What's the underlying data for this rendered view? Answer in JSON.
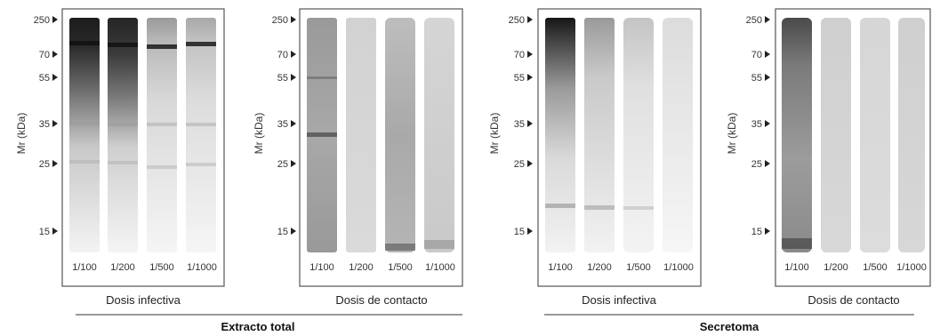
{
  "axis_title": "Mr (kDa)",
  "mw_ticks": [
    "250",
    "70",
    "55",
    "35",
    "25",
    "15"
  ],
  "groups": [
    {
      "label": "Extracto total",
      "panels": [
        {
          "caption": "Dosis infectiva",
          "lanes": [
            "1/100",
            "1/200",
            "1/500",
            "1/1000"
          ]
        },
        {
          "caption": "Dosis de contacto",
          "lanes": [
            "1/100",
            "1/200",
            "1/500",
            "1/1000"
          ]
        }
      ]
    },
    {
      "label": "Secretoma",
      "panels": [
        {
          "caption": "Dosis infectiva",
          "lanes": [
            "1/100",
            "1/200",
            "1/500",
            "1/1000"
          ]
        },
        {
          "caption": "Dosis de contacto",
          "lanes": [
            "1/100",
            "1/200",
            "1/500",
            "1/1000"
          ]
        }
      ]
    }
  ]
}
